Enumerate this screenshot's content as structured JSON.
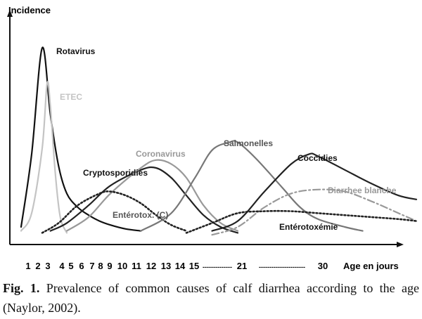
{
  "chart_data": {
    "type": "line",
    "title": "",
    "ylabel": "Incidence",
    "xlabel": "Age en jours",
    "x_tick_labels": [
      "1",
      "2",
      "3",
      "4",
      "5",
      "6",
      "7",
      "8",
      "9",
      "10",
      "11",
      "12",
      "13",
      "14",
      "15",
      "21",
      "30"
    ],
    "x_tick_separators": [
      "--------------",
      "----------------------"
    ],
    "grid": false,
    "legend": "inline labels on curves",
    "series": [
      {
        "name": "Rotavirus",
        "color": "#111111",
        "style": "solid",
        "label": "Rotavirus",
        "points": [
          [
            1,
            0.05
          ],
          [
            2,
            0.42
          ],
          [
            3,
            0.96
          ],
          [
            4,
            0.62
          ],
          [
            5,
            0.36
          ],
          [
            6,
            0.22
          ],
          [
            7,
            0.15
          ],
          [
            8,
            0.11
          ],
          [
            9,
            0.08
          ],
          [
            10,
            0.06
          ],
          [
            11,
            0.04
          ],
          [
            12,
            0.03
          ]
        ]
      },
      {
        "name": "ETEC",
        "color": "#c4c4c4",
        "style": "solid",
        "label": "ETEC",
        "points": [
          [
            1,
            0.03
          ],
          [
            2,
            0.12
          ],
          [
            3,
            0.45
          ],
          [
            3.6,
            0.78
          ],
          [
            4,
            0.66
          ],
          [
            4.6,
            0.32
          ],
          [
            5.2,
            0.1
          ],
          [
            6,
            0.02
          ]
        ]
      },
      {
        "name": "Cryptosporidies",
        "color": "#222222",
        "style": "solid",
        "label": "Cryptosporidies",
        "points": [
          [
            4,
            0.03
          ],
          [
            6,
            0.07
          ],
          [
            8,
            0.16
          ],
          [
            10,
            0.26
          ],
          [
            12,
            0.34
          ],
          [
            13,
            0.35
          ],
          [
            14,
            0.3
          ],
          [
            15,
            0.21
          ],
          [
            17,
            0.11
          ],
          [
            19,
            0.05
          ],
          [
            21,
            0.02
          ]
        ]
      },
      {
        "name": "Coronavirus",
        "color": "#999999",
        "style": "solid",
        "label": "Coronavirus",
        "points": [
          [
            6,
            0.03
          ],
          [
            8,
            0.1
          ],
          [
            10,
            0.22
          ],
          [
            12,
            0.35
          ],
          [
            13,
            0.39
          ],
          [
            14,
            0.37
          ],
          [
            15,
            0.3
          ],
          [
            17,
            0.16
          ],
          [
            19,
            0.07
          ],
          [
            21,
            0.03
          ]
        ]
      },
      {
        "name": "Entérotox. (C)",
        "color": "#222222",
        "style": "dotted",
        "label": "Entérotox. (C)",
        "points": [
          [
            3,
            0.02
          ],
          [
            5,
            0.07
          ],
          [
            7,
            0.16
          ],
          [
            9,
            0.22
          ],
          [
            10,
            0.23
          ],
          [
            11,
            0.21
          ],
          [
            12,
            0.17
          ],
          [
            13,
            0.11
          ],
          [
            14,
            0.06
          ],
          [
            15,
            0.03
          ]
        ]
      },
      {
        "name": "Salmonelles",
        "color": "#777777",
        "style": "solid",
        "label": "Salmonelles",
        "points": [
          [
            12,
            0.03
          ],
          [
            14,
            0.12
          ],
          [
            16,
            0.3
          ],
          [
            18,
            0.44
          ],
          [
            20,
            0.48
          ],
          [
            21,
            0.48
          ],
          [
            23,
            0.4
          ],
          [
            26,
            0.25
          ],
          [
            28,
            0.15
          ],
          [
            30,
            0.09
          ],
          [
            33,
            0.05
          ],
          [
            35,
            0.03
          ]
        ]
      },
      {
        "name": "Coccidies",
        "color": "#222222",
        "style": "solid",
        "label": "Coccidies",
        "points": [
          [
            18,
            0.03
          ],
          [
            21,
            0.08
          ],
          [
            24,
            0.23
          ],
          [
            27,
            0.37
          ],
          [
            29,
            0.42
          ],
          [
            30,
            0.41
          ],
          [
            33,
            0.34
          ],
          [
            36,
            0.27
          ],
          [
            39,
            0.21
          ],
          [
            41,
            0.19
          ]
        ]
      },
      {
        "name": "Diarrhée blanche",
        "color": "#999999",
        "style": "dashdot",
        "label": "Diarrhee blanche",
        "points": [
          [
            18,
            0.01
          ],
          [
            21,
            0.05
          ],
          [
            24,
            0.15
          ],
          [
            27,
            0.22
          ],
          [
            30,
            0.24
          ],
          [
            33,
            0.23
          ],
          [
            36,
            0.18
          ],
          [
            39,
            0.12
          ],
          [
            41,
            0.08
          ]
        ]
      },
      {
        "name": "Entérotoxémie",
        "color": "#222222",
        "style": "dotted",
        "label": "Entérotoxémie",
        "points": [
          [
            15,
            0.02
          ],
          [
            18,
            0.07
          ],
          [
            21,
            0.12
          ],
          [
            24,
            0.13
          ],
          [
            27,
            0.13
          ],
          [
            30,
            0.12
          ],
          [
            33,
            0.11
          ],
          [
            36,
            0.1
          ],
          [
            39,
            0.09
          ],
          [
            41,
            0.08
          ]
        ]
      }
    ]
  },
  "caption": {
    "figure_label": "Fig. 1.",
    "text": " Prevalence of common causes of calf diarrhea according to the age (Naylor, 2002)."
  }
}
